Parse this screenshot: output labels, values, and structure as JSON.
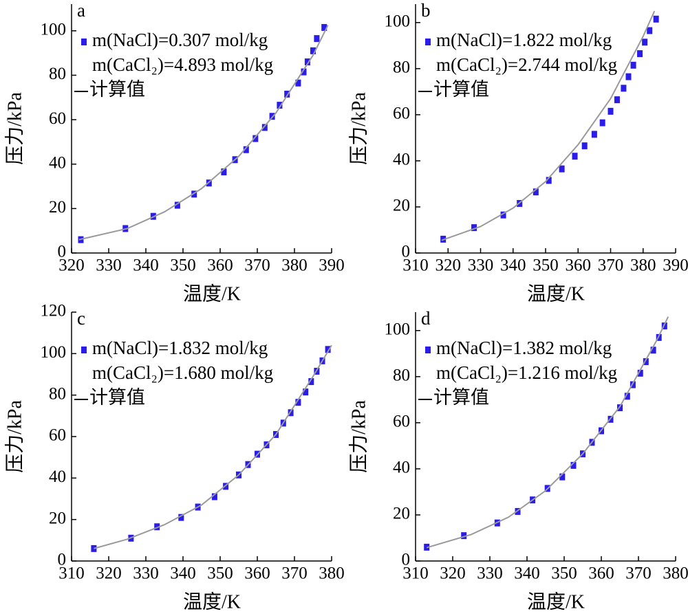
{
  "chart_data": [
    {
      "type": "scatter",
      "label": "a",
      "xlabel": "温度/K",
      "ylabel": "压力/kPa",
      "xlim": [
        320,
        390
      ],
      "xticks": [
        320,
        330,
        340,
        350,
        360,
        370,
        380,
        390
      ],
      "ylim": [
        0,
        112
      ],
      "yticks": [
        0,
        20,
        40,
        60,
        80,
        100
      ],
      "series": [
        {
          "name": [
            "m(NaCl)=0.307 mol/kg",
            "m(CaCl₂)=4.893 mol/kg"
          ],
          "color": "#2b1de8",
          "x": [
            322.5,
            334.5,
            342,
            348.5,
            353,
            357,
            361,
            364,
            367,
            369.5,
            372,
            374,
            376,
            378,
            381,
            382.5,
            383.5,
            385,
            386,
            388
          ],
          "values": [
            6,
            11,
            16.5,
            21.5,
            26.5,
            31.5,
            36.5,
            42,
            46.5,
            51.5,
            56.5,
            61.5,
            66.5,
            71.5,
            76.5,
            81.5,
            86,
            91,
            96.5,
            101.5
          ]
        },
        {
          "name": "计算值",
          "type": "line",
          "color": "#9a9a9a",
          "x": [
            322,
            335,
            345,
            355,
            365,
            375,
            385,
            389
          ],
          "values": [
            6,
            11,
            18.5,
            29,
            43.5,
            63,
            89,
            102.5
          ]
        }
      ]
    },
    {
      "type": "scatter",
      "label": "b",
      "xlabel": "温度/K",
      "ylabel": "压力/kPa",
      "xlim": [
        310,
        390
      ],
      "xticks": [
        310,
        320,
        330,
        340,
        350,
        360,
        370,
        380,
        390
      ],
      "ylim": [
        0,
        108
      ],
      "yticks": [
        0,
        20,
        40,
        60,
        80,
        100
      ],
      "series": [
        {
          "name": [
            "m(NaCl)=1.822 mol/kg",
            "m(CaCl₂)=2.744 mol/kg"
          ],
          "color": "#2b1de8",
          "x": [
            318.5,
            328,
            337,
            342,
            347,
            351,
            355,
            359,
            362,
            365,
            367.5,
            370,
            372,
            374,
            375.5,
            377,
            379,
            380.5,
            382,
            384
          ],
          "values": [
            6,
            11,
            16.5,
            21.5,
            26.5,
            31.5,
            36.5,
            42,
            46.5,
            51.5,
            56.5,
            61.5,
            66.5,
            71.5,
            76.5,
            81.5,
            86.5,
            91.5,
            96.5,
            101.5
          ]
        },
        {
          "name": "计算值",
          "type": "line",
          "color": "#9a9a9a",
          "x": [
            318,
            330,
            340,
            350,
            360,
            370,
            380,
            383.5
          ],
          "values": [
            5.5,
            11.5,
            19.5,
            31,
            47,
            67,
            94,
            105
          ]
        }
      ]
    },
    {
      "type": "scatter",
      "label": "c",
      "xlabel": "温度/K",
      "ylabel": "压力/kPa",
      "xlim": [
        310,
        380
      ],
      "xticks": [
        310,
        320,
        330,
        340,
        350,
        360,
        370,
        380
      ],
      "ylim": [
        0,
        120
      ],
      "yticks": [
        0,
        20,
        40,
        60,
        80,
        100,
        120
      ],
      "series": [
        {
          "name": [
            "m(NaCl)=1.832 mol/kg",
            "m(CaCl₂)=1.680 mol/kg"
          ],
          "color": "#2b1de8",
          "x": [
            316,
            326,
            333,
            339.5,
            344,
            348.5,
            351.5,
            355,
            357.5,
            360,
            362.5,
            365,
            367,
            369,
            371,
            373,
            374.5,
            376,
            377.5,
            379
          ],
          "values": [
            6,
            11,
            16.5,
            21,
            26,
            31,
            36,
            41.5,
            46.5,
            51.5,
            56,
            61,
            66.5,
            71.5,
            76.5,
            81.5,
            86.5,
            91.5,
            96.5,
            102
          ]
        },
        {
          "name": "计算值",
          "type": "line",
          "color": "#9a9a9a",
          "x": [
            316,
            325,
            335,
            345,
            355,
            365,
            375,
            380
          ],
          "values": [
            6,
            10.5,
            17.5,
            27,
            41.5,
            61,
            89,
            104
          ]
        }
      ]
    },
    {
      "type": "scatter",
      "label": "d",
      "xlabel": "温度/K",
      "ylabel": "压力/kPa",
      "xlim": [
        310,
        380
      ],
      "xticks": [
        310,
        320,
        330,
        340,
        350,
        360,
        370,
        380
      ],
      "ylim": [
        0,
        108
      ],
      "yticks": [
        0,
        20,
        40,
        60,
        80,
        100
      ],
      "series": [
        {
          "name": [
            "m(NaCl)=1.382 mol/kg",
            "m(CaCl₂)=1.216 mol/kg"
          ],
          "color": "#2b1de8",
          "x": [
            313,
            323,
            332,
            337.5,
            341.5,
            345.5,
            349.5,
            352.5,
            355,
            357.5,
            360,
            362.5,
            365,
            367,
            368.5,
            370.5,
            372,
            374,
            375.5,
            377
          ],
          "values": [
            6,
            11,
            16.5,
            21.5,
            26.5,
            31.5,
            36.5,
            41.5,
            46.5,
            51.5,
            56.5,
            61.5,
            66.5,
            71.5,
            76.5,
            81.5,
            86.5,
            91.5,
            97,
            102
          ]
        },
        {
          "name": "计算值",
          "type": "line",
          "color": "#9a9a9a",
          "x": [
            313,
            325,
            335,
            345,
            355,
            365,
            375,
            378
          ],
          "values": [
            5.8,
            11.5,
            19,
            30.5,
            46.5,
            67,
            96,
            106
          ]
        }
      ]
    }
  ]
}
